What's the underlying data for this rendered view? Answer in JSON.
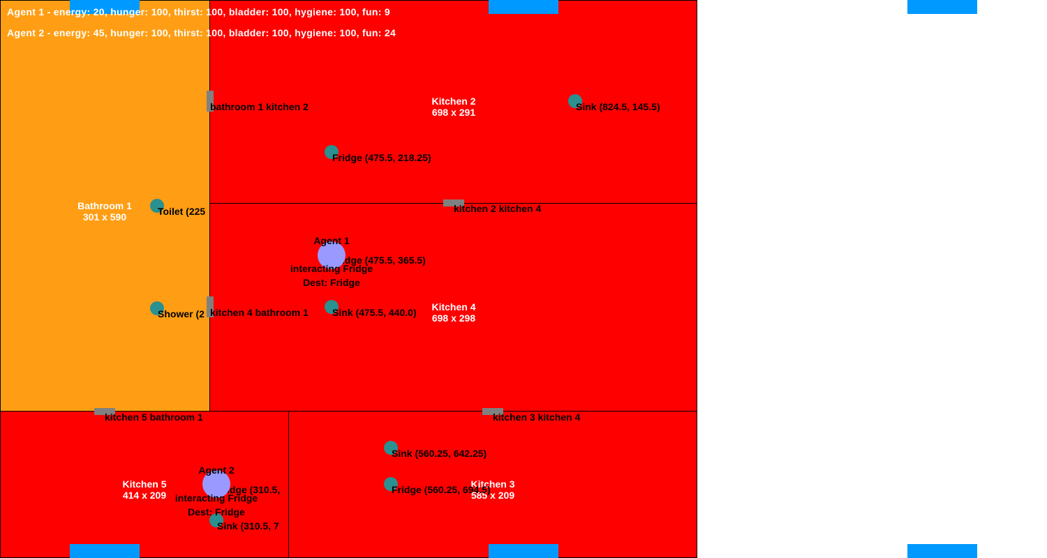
{
  "status": {
    "agent1": "Agent 1 - energy: 20, hunger: 100, thirst: 100, bladder: 100, hygiene: 100, fun: 9",
    "agent2": "Agent 2 - energy: 45, hunger: 100, thirst: 100, bladder: 100, hygiene: 100, fun: 24"
  },
  "rooms": {
    "bathroom1": {
      "name": "Bathroom 1",
      "size": "301 x 590",
      "color": "#ff9e14"
    },
    "kitchen2": {
      "name": "Kitchen 2",
      "size": "698 x 291",
      "color": "#ff0000"
    },
    "kitchen4": {
      "name": "Kitchen 4",
      "size": "698 x 298",
      "color": "#ff0000"
    },
    "kitchen5": {
      "name": "Kitchen 5",
      "size": "414 x 209",
      "color": "#ff0000"
    },
    "kitchen3": {
      "name": "Kitchen 3",
      "size": "585 x 209",
      "color": "#ff0000"
    }
  },
  "doors": {
    "bathroom1_kitchen2": "bathroom 1 kitchen 2",
    "kitchen2_kitchen4": "kitchen 2 kitchen 4",
    "kitchen4_bathroom1": "kitchen 4 bathroom 1",
    "kitchen5_bathroom1": "kitchen 5 bathroom 1",
    "kitchen3_kitchen4": "kitchen 3 kitchen 4"
  },
  "objects": {
    "sink_k2": "Sink (824.5, 145.5)",
    "fridge_k2": "Fridge (475.5, 218.25)",
    "toilet_b1": "Toilet (225",
    "fridge_k4": "Fridge (475.5, 365.5)",
    "sink_k4": "Sink (475.5, 440.0)",
    "shower_b1": "Shower (2",
    "sink_k3": "Sink (560.25, 642.25)",
    "fridge_k3": "Fridge (560.25, 694.5)",
    "fridge_k5": "Fridge (310.5,",
    "sink_k5": "Sink (310.5, 7"
  },
  "agents": {
    "agent1": {
      "name": "Agent 1",
      "action": "interacting Fridge",
      "dest": "Dest: Fridge",
      "color": "#9999ff"
    },
    "agent2": {
      "name": "Agent 2",
      "action": "interacting Fridge",
      "dest": "Dest: Fridge",
      "color": "#9999ff"
    }
  },
  "colors": {
    "bathroom": "#ff9e14",
    "kitchen": "#ff0000",
    "door": "#808080",
    "object": "#2a9090",
    "window": "#0099ff"
  }
}
